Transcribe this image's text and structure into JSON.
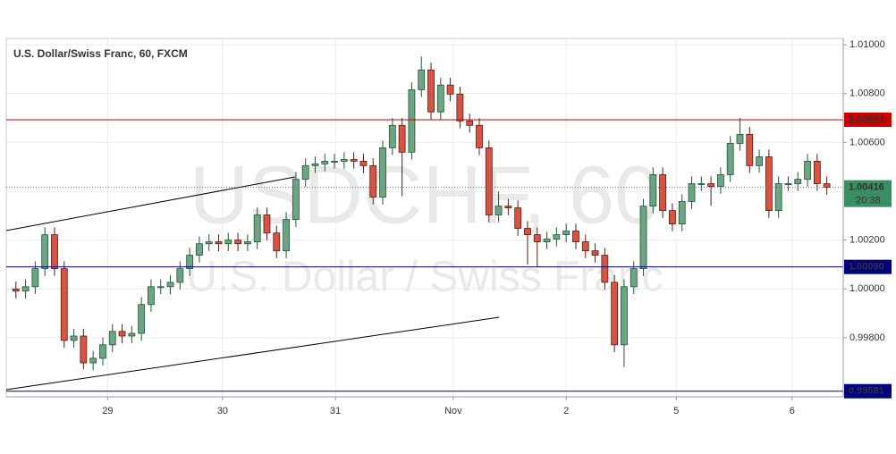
{
  "chart_data": {
    "type": "candlestick",
    "title": "U.S. Dollar/Swiss Franc, 60, FXCM",
    "watermark": "USDCHF, 60",
    "watermark_subtitle": "U.S. Dollar / Swiss Franc",
    "up_color": "#6ba583",
    "down_color": "#d75442",
    "up_border": "#225437",
    "down_border": "#5b1a13",
    "open": [
      1.0,
      0.99991,
      1.00009,
      1.00083,
      1.00222,
      1.00083,
      0.99789,
      0.99807,
      0.99697,
      0.99716,
      0.99771,
      0.99826,
      0.99807,
      0.99818,
      0.99936,
      1.00009,
      1.00009,
      1.00027,
      1.00083,
      1.00138,
      1.00185,
      1.00193,
      1.00185,
      1.002,
      1.00185,
      1.00193,
      1.00303,
      1.00229,
      1.00156,
      1.00284,
      1.00449,
      1.00505,
      1.00512,
      1.00523,
      1.00523,
      1.0053,
      1.00523,
      1.00505,
      1.00376,
      1.00578,
      1.0067,
      1.0056,
      1.00816,
      1.00897,
      1.00725,
      1.00835,
      1.00798,
      1.00688,
      1.0067,
      1.00578,
      1.00303,
      1.00339,
      1.00332,
      1.00248,
      1.00222,
      1.00193,
      1.00204,
      1.00222,
      1.00237,
      1.00193,
      1.00156,
      1.00138,
      1.00027,
      0.99771,
      1.00009,
      1.00083,
      1.00339,
      1.00468,
      1.00321,
      1.00266,
      1.00358,
      1.00431,
      1.00431,
      1.0042,
      1.00468,
      1.00596,
      1.00633,
      1.00505,
      1.00541,
      1.00321,
      1.00431,
      1.00431,
      1.00449,
      1.00523,
      1.00431
    ],
    "high": [
      1.0003,
      1.00039,
      1.00113,
      1.00252,
      1.00252,
      1.00113,
      0.99837,
      0.99837,
      0.99746,
      0.99801,
      0.99856,
      0.99856,
      0.99848,
      0.99966,
      1.00039,
      1.00039,
      1.00057,
      1.00113,
      1.00168,
      1.00215,
      1.00223,
      1.00223,
      1.0023,
      1.0023,
      1.00223,
      1.00333,
      1.00333,
      1.00259,
      1.00314,
      1.00479,
      1.00535,
      1.00542,
      1.00553,
      1.00553,
      1.0056,
      1.0056,
      1.00553,
      1.00535,
      1.00608,
      1.007,
      1.007,
      1.00846,
      1.00952,
      1.00927,
      1.00865,
      1.00865,
      1.00828,
      1.00718,
      1.007,
      1.00608,
      1.004,
      1.00369,
      1.00362,
      1.00278,
      1.00252,
      1.00234,
      1.00252,
      1.00267,
      1.00267,
      1.00223,
      1.00186,
      1.00168,
      1.00057,
      1.00039,
      1.00113,
      1.00369,
      1.00498,
      1.00498,
      1.00351,
      1.00388,
      1.00461,
      1.00461,
      1.00461,
      1.00498,
      1.00626,
      1.007,
      1.00663,
      1.00571,
      1.00571,
      1.00461,
      1.00461,
      1.00479,
      1.00553,
      1.00553,
      1.00461
    ],
    "low": [
      0.99961,
      0.99961,
      0.99979,
      1.00053,
      1.00053,
      0.99759,
      0.99759,
      0.9967,
      0.99667,
      0.99686,
      0.99741,
      0.99777,
      0.99777,
      0.99788,
      0.99906,
      0.99979,
      0.99979,
      0.99997,
      1.00053,
      1.00108,
      1.00155,
      1.00155,
      1.00155,
      1.00155,
      1.00155,
      1.00163,
      1.00199,
      1.00126,
      1.00126,
      1.00254,
      1.00419,
      1.00475,
      1.00482,
      1.00493,
      1.00493,
      1.00493,
      1.00475,
      1.00346,
      1.00346,
      1.00548,
      1.0038,
      1.0053,
      1.00786,
      1.00695,
      1.00695,
      1.00768,
      1.00658,
      1.0064,
      1.00548,
      1.00273,
      1.00273,
      1.00302,
      1.00218,
      1.001,
      1.0009,
      1.00163,
      1.00174,
      1.00192,
      1.00163,
      1.00126,
      1.00108,
      0.99997,
      0.99741,
      0.9968,
      0.99979,
      1.00053,
      1.00309,
      1.00291,
      1.00236,
      1.00236,
      1.00328,
      1.00401,
      1.0034,
      1.0039,
      1.00438,
      1.00566,
      1.00475,
      1.00475,
      1.00291,
      1.00291,
      1.00401,
      1.00401,
      1.00419,
      1.00401,
      1.00386
    ],
    "close": [
      0.99991,
      1.00009,
      1.00083,
      1.00222,
      1.00083,
      0.99789,
      0.99807,
      0.99697,
      0.99716,
      0.99771,
      0.99826,
      0.99807,
      0.99818,
      0.99936,
      1.00009,
      1.00009,
      1.00027,
      1.00083,
      1.00138,
      1.00185,
      1.00193,
      1.00185,
      1.002,
      1.00185,
      1.00193,
      1.00303,
      1.00229,
      1.00156,
      1.00284,
      1.00449,
      1.00505,
      1.00512,
      1.00523,
      1.00523,
      1.0053,
      1.00523,
      1.00505,
      1.00376,
      1.00578,
      1.0067,
      1.0056,
      1.00816,
      1.00897,
      1.00725,
      1.00835,
      1.00798,
      1.00688,
      1.0067,
      1.00578,
      1.00303,
      1.00339,
      1.00332,
      1.00248,
      1.00222,
      1.00193,
      1.00204,
      1.00222,
      1.00237,
      1.00193,
      1.00156,
      1.00138,
      1.00027,
      0.99771,
      1.00009,
      1.00083,
      1.00339,
      1.00468,
      1.00321,
      1.00266,
      1.00358,
      1.00431,
      1.00431,
      1.0042,
      1.00468,
      1.00596,
      1.00633,
      1.00505,
      1.00541,
      1.00321,
      1.00431,
      1.00431,
      1.00449,
      1.00523,
      1.00431,
      1.00416
    ],
    "xlim": [
      -1,
      85.7
    ],
    "xticks": [
      {
        "value": 9.5,
        "label": "29"
      },
      {
        "value": 21.4,
        "label": "30"
      },
      {
        "value": 33.1,
        "label": "31"
      },
      {
        "value": 45.3,
        "label": "Nov"
      },
      {
        "value": 57,
        "label": "2"
      },
      {
        "value": 68.4,
        "label": "5"
      },
      {
        "value": 80.4,
        "label": "6"
      }
    ],
    "ylim": [
      0.99558,
      1.01026
    ],
    "yticks": [
      {
        "value": 0.998,
        "label": "0.99800"
      },
      {
        "value": 1.0,
        "label": "1.00000"
      },
      {
        "value": 1.002,
        "label": "1.00200"
      },
      {
        "value": 1.006,
        "label": "1.00600"
      },
      {
        "value": 1.008,
        "label": "1.00800"
      },
      {
        "value": 1.01,
        "label": "1.01000"
      }
    ],
    "grid": true,
    "levels": [
      {
        "value": 1.00693,
        "label": "1.00693",
        "color": "#cc0000"
      },
      {
        "value": 1.0009,
        "label": "1.00090",
        "color": "#000080"
      },
      {
        "value": 0.99581,
        "label": "0.99581",
        "color": "#000080"
      }
    ],
    "current_price": {
      "value": 1.00416,
      "label": "1.00416",
      "countdown": "20:38",
      "color": "#3c8c64"
    }
  }
}
